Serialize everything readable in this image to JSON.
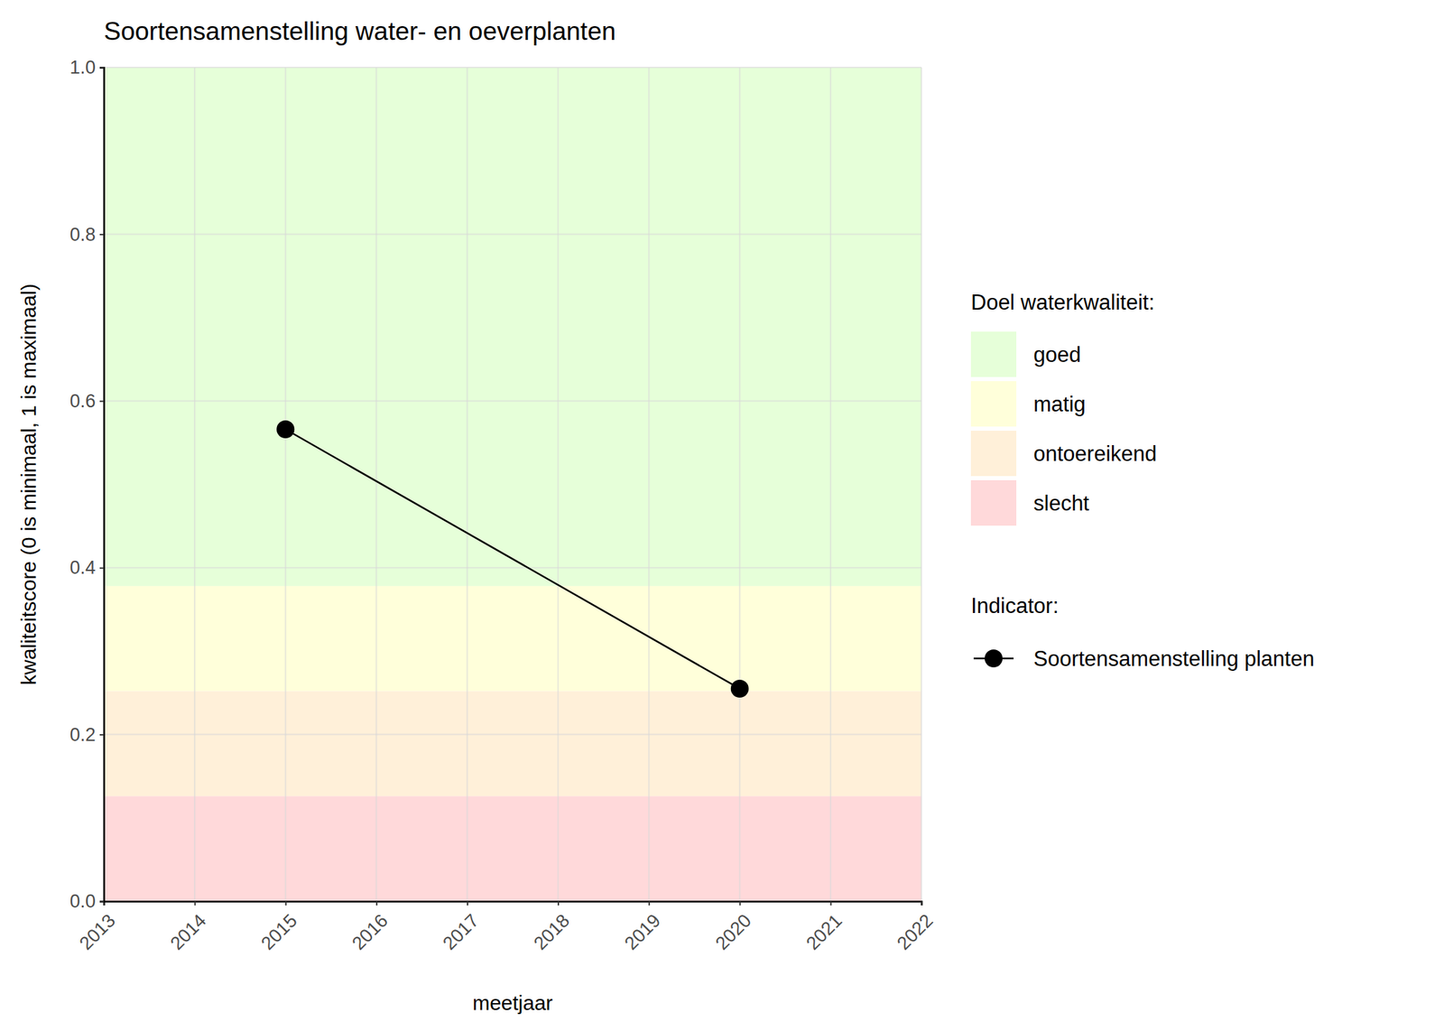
{
  "chart_data": {
    "type": "line",
    "title": "Soortensamenstelling water- en oeverplanten",
    "x_label": "meetjaar",
    "y_label": "kwaliteitscore (0 is minimaal, 1 is maximaal)",
    "x": [
      2015,
      2020
    ],
    "series": [
      {
        "name": "Soortensamenstelling planten",
        "color": "#000000",
        "values": [
          0.566,
          0.255
        ],
        "marker": "circle",
        "line_style": "solid"
      }
    ],
    "xlim": [
      2013,
      2022
    ],
    "xticks": [
      2013,
      2014,
      2015,
      2016,
      2017,
      2018,
      2019,
      2020,
      2021,
      2022
    ],
    "ylim": [
      0,
      1
    ],
    "yticks": [
      {
        "value": 0,
        "label": "0.0"
      },
      0.2,
      0.4,
      0.6,
      0.8,
      {
        "value": 1,
        "label": "1.0"
      }
    ],
    "grid": true,
    "legend": "right",
    "band_legend_title": "Doel waterkwaliteit:",
    "series_legend_title": "Indicator:",
    "bands": [
      {
        "name": "goed",
        "color": "#e6ffd9",
        "from": 0.378,
        "to": 1
      },
      {
        "name": "matig",
        "color": "#ffffda",
        "from": 0.252,
        "to": 0.378
      },
      {
        "name": "ontoereikend",
        "color": "#fff0d9",
        "from": 0.126,
        "to": 0.252
      },
      {
        "name": "slecht",
        "color": "#ffd9da",
        "from": 0,
        "to": 0.126
      }
    ]
  }
}
